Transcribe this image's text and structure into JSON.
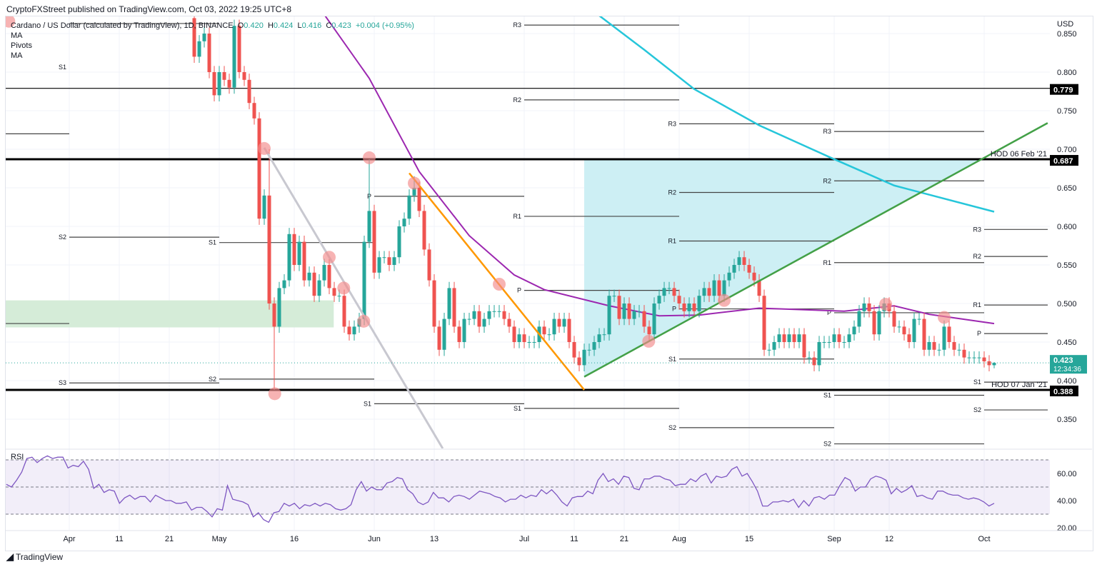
{
  "header": {
    "publisher_line": "CryptoFXStreet published on TradingView.com, Oct 03, 2022 19:25 UTC+8"
  },
  "legend": {
    "symbol": "Cardano / US Dollar (calculated by TradingView), 1D, BINANCE",
    "o_label": "O",
    "o": "0.420",
    "h_label": "H",
    "h": "0.424",
    "l_label": "L",
    "l": "0.416",
    "c_label": "C",
    "c": "0.423",
    "change": "+0.004 (+0.95%)",
    "indicators": [
      "MA",
      "Pivots",
      "MA"
    ],
    "rsi_label": "RSI"
  },
  "footer": {
    "brand": "TradingView",
    "logo_text": "17"
  },
  "colors": {
    "up": "#26a69a",
    "down": "#ef5350",
    "ma50": "#9c27b0",
    "ma200": "#26c6da",
    "rsi": "#7e57c2",
    "trend_green": "#43a047",
    "trend_orange": "#ff9800",
    "trend_grey": "#c8c8d0",
    "zone_green": "#d5ecd8",
    "zone_cyan": "#cdeff4",
    "marker": "#f28b8b"
  },
  "chart_data": {
    "type": "candlestick",
    "title": "Cardano / US Dollar, 1D, BINANCE",
    "ylabel": "USD",
    "ylim": [
      0.318,
      0.88
    ],
    "yticks": [
      "0.850",
      "0.800",
      "0.750",
      "0.700",
      "0.650",
      "0.600",
      "0.550",
      "0.500",
      "0.450",
      "0.400",
      "0.350"
    ],
    "x_unit": "days since Apr 1 2022",
    "xticks": [
      {
        "label": "Apr",
        "day": 0
      },
      {
        "label": "11",
        "day": 10
      },
      {
        "label": "21",
        "day": 20
      },
      {
        "label": "May",
        "day": 30
      },
      {
        "label": "16",
        "day": 45
      },
      {
        "label": "Jun",
        "day": 61
      },
      {
        "label": "13",
        "day": 73
      },
      {
        "label": "Jul",
        "day": 91
      },
      {
        "label": "11",
        "day": 101
      },
      {
        "label": "21",
        "day": 111
      },
      {
        "label": "Aug",
        "day": 122
      },
      {
        "label": "15",
        "day": 136
      },
      {
        "label": "Sep",
        "day": 153
      },
      {
        "label": "12",
        "day": 164
      },
      {
        "label": "Oct",
        "day": 183
      }
    ],
    "candles": {
      "start_day": 25,
      "first_open": 0.87,
      "closes": [
        0.82,
        0.84,
        0.85,
        0.8,
        0.77,
        0.8,
        0.79,
        0.78,
        0.86,
        0.8,
        0.79,
        0.76,
        0.74,
        0.61,
        0.64,
        0.5,
        0.47,
        0.52,
        0.53,
        0.59,
        0.55,
        0.58,
        0.53,
        0.54,
        0.51,
        0.53,
        0.55,
        0.52,
        0.51,
        0.51,
        0.47,
        0.46,
        0.47,
        0.48,
        0.58,
        0.62,
        0.54,
        0.56,
        0.56,
        0.55,
        0.56,
        0.6,
        0.61,
        0.64,
        0.65,
        0.62,
        0.57,
        0.53,
        0.47,
        0.44,
        0.48,
        0.52,
        0.47,
        0.45,
        0.48,
        0.48,
        0.49,
        0.47,
        0.48,
        0.49,
        0.49,
        0.49,
        0.48,
        0.47,
        0.45,
        0.46,
        0.45,
        0.45,
        0.45,
        0.47,
        0.46,
        0.46,
        0.48,
        0.47,
        0.48,
        0.45,
        0.43,
        0.42,
        0.44,
        0.44,
        0.45,
        0.46,
        0.46,
        0.51,
        0.51,
        0.48,
        0.5,
        0.48,
        0.49,
        0.49,
        0.47,
        0.46,
        0.5,
        0.51,
        0.52,
        0.52,
        0.51,
        0.5,
        0.49,
        0.5,
        0.49,
        0.51,
        0.52,
        0.51,
        0.53,
        0.51,
        0.53,
        0.54,
        0.55,
        0.56,
        0.55,
        0.54,
        0.53,
        0.51,
        0.44,
        0.44,
        0.45,
        0.46,
        0.45,
        0.46,
        0.45,
        0.46,
        0.43,
        0.43,
        0.42,
        0.45,
        0.45,
        0.45,
        0.46,
        0.45,
        0.45,
        0.46,
        0.47,
        0.49,
        0.5,
        0.49,
        0.46,
        0.49,
        0.5,
        0.49,
        0.47,
        0.47,
        0.46,
        0.45,
        0.48,
        0.48,
        0.44,
        0.45,
        0.44,
        0.44,
        0.47,
        0.45,
        0.44,
        0.44,
        0.43,
        0.43,
        0.43,
        0.43,
        0.425,
        0.42,
        0.423
      ],
      "high_overrides": {
        "40": 0.7,
        "60": 0.687,
        "69": 0.665,
        "185": 0.424
      },
      "low_overrides": {
        "41": 0.388,
        "185": 0.416
      }
    },
    "ma50": [
      [
        49,
        0.893
      ],
      [
        60,
        0.792
      ],
      [
        70,
        0.671
      ],
      [
        80,
        0.588
      ],
      [
        89,
        0.537
      ],
      [
        95,
        0.518
      ],
      [
        108,
        0.497
      ],
      [
        118,
        0.484
      ],
      [
        126,
        0.485
      ],
      [
        138,
        0.494
      ],
      [
        155,
        0.49
      ],
      [
        165,
        0.497
      ],
      [
        172,
        0.486
      ],
      [
        185,
        0.474
      ]
    ],
    "ma200": [
      [
        102,
        0.893
      ],
      [
        115,
        0.829
      ],
      [
        125,
        0.778
      ],
      [
        138,
        0.731
      ],
      [
        152,
        0.69
      ],
      [
        165,
        0.653
      ],
      [
        185,
        0.619
      ]
    ],
    "horizontal_levels": [
      {
        "price": 0.779,
        "label": "0.779",
        "note": "",
        "weight": "thin"
      },
      {
        "price": 0.687,
        "label": "0.687",
        "note": "HOD 06 Feb '21",
        "weight": "thick"
      },
      {
        "price": 0.388,
        "label": "0.388",
        "note": "HOD 07 Jan '21",
        "weight": "thick"
      }
    ],
    "last_price": {
      "price": 0.423,
      "label": "0.423",
      "countdown": "12:34:36"
    },
    "pivots": [
      {
        "from": -13,
        "to": 0,
        "levels": [
          {
            "label": "",
            "price": 0.72
          },
          {
            "label": "",
            "price": 0.474
          }
        ]
      },
      {
        "from": 0,
        "to": 30,
        "levels": [
          {
            "label": "S1",
            "price": 0.863
          },
          {
            "label": "S2",
            "price": 0.586
          },
          {
            "label": "S3",
            "price": 0.397
          }
        ]
      },
      {
        "from": 30,
        "to": 61,
        "levels": [
          {
            "label": "S1",
            "price": 0.579
          },
          {
            "label": "S2",
            "price": 0.402
          }
        ]
      },
      {
        "from": 61,
        "to": 91,
        "levels": [
          {
            "label": "P",
            "price": 0.639
          },
          {
            "label": "S1",
            "price": 0.37
          }
        ]
      },
      {
        "from": 91,
        "to": 122,
        "levels": [
          {
            "label": "R3",
            "price": 0.861
          },
          {
            "label": "R2",
            "price": 0.764
          },
          {
            "label": "R1",
            "price": 0.613
          },
          {
            "label": "P",
            "price": 0.517
          },
          {
            "label": "S1",
            "price": 0.364
          }
        ]
      },
      {
        "from": 122,
        "to": 153,
        "levels": [
          {
            "label": "R3",
            "price": 0.733
          },
          {
            "label": "R2",
            "price": 0.644
          },
          {
            "label": "R1",
            "price": 0.581
          },
          {
            "label": "P",
            "price": 0.493
          },
          {
            "label": "S1",
            "price": 0.428
          },
          {
            "label": "S2",
            "price": 0.339
          }
        ]
      },
      {
        "from": 153,
        "to": 183,
        "levels": [
          {
            "label": "R3",
            "price": 0.723
          },
          {
            "label": "R2",
            "price": 0.659
          },
          {
            "label": "R1",
            "price": 0.553
          },
          {
            "label": "P",
            "price": 0.488
          },
          {
            "label": "S1",
            "price": 0.381
          },
          {
            "label": "S2",
            "price": 0.318
          }
        ]
      },
      {
        "from": 183,
        "to": 196,
        "levels": [
          {
            "label": "R3",
            "price": 0.596
          },
          {
            "label": "R2",
            "price": 0.561
          },
          {
            "label": "R1",
            "price": 0.498
          },
          {
            "label": "P",
            "price": 0.461
          },
          {
            "label": "S1",
            "price": 0.398
          },
          {
            "label": "S2",
            "price": 0.362
          }
        ]
      }
    ],
    "trendlines": [
      {
        "name": "grey-trendline",
        "color": "trend_grey",
        "from": [
          39,
          0.702
        ],
        "to": [
          74.7,
          0.312
        ]
      },
      {
        "name": "orange-trendline",
        "color": "trend_orange",
        "from": [
          68,
          0.669
        ],
        "to": [
          103,
          0.388
        ]
      },
      {
        "name": "green-trendline",
        "color": "trend_green",
        "from": [
          103,
          0.405
        ],
        "to": [
          195.7,
          0.734
        ]
      }
    ],
    "zones": [
      {
        "name": "green-demand-zone",
        "color": "zone_green",
        "polygon": [
          [
            -13,
            0.504
          ],
          [
            52.9,
            0.504
          ],
          [
            52.9,
            0.469
          ],
          [
            -13,
            0.469
          ]
        ]
      },
      {
        "name": "cyan-triangle-zone",
        "color": "zone_cyan",
        "polygon": [
          [
            103,
            0.687
          ],
          [
            182.4,
            0.687
          ],
          [
            103,
            0.405
          ]
        ]
      }
    ],
    "markers": [
      [
        -12.1,
        0.866
      ],
      [
        39,
        0.701
      ],
      [
        41.1,
        0.383
      ],
      [
        52,
        0.56
      ],
      [
        54.9,
        0.52
      ],
      [
        58.9,
        0.477
      ],
      [
        60,
        0.689
      ],
      [
        69,
        0.656
      ],
      [
        86,
        0.525
      ],
      [
        115.9,
        0.451
      ],
      [
        131,
        0.504
      ],
      [
        163.3,
        0.499
      ],
      [
        175,
        0.482
      ]
    ],
    "rsi": {
      "start_day": -12.6,
      "end_day": 185,
      "levels": [
        70,
        50,
        30
      ],
      "ticks": [
        "60.00",
        "40.00",
        "20.00"
      ],
      "values": [
        52,
        50,
        55,
        61,
        71,
        72,
        68,
        71,
        73,
        71,
        72,
        72,
        64,
        66,
        65,
        69,
        63,
        49,
        52,
        46,
        48,
        47,
        38,
        42,
        44,
        41,
        43,
        43,
        39,
        44,
        42,
        40,
        40,
        38,
        38,
        39,
        33,
        35,
        35,
        32,
        28,
        34,
        33,
        51,
        41,
        40,
        39,
        37,
        28,
        31,
        26,
        24,
        31,
        32,
        38,
        36,
        38,
        34,
        37,
        36,
        38,
        36,
        38,
        37,
        34,
        33,
        34,
        37,
        48,
        54,
        47,
        50,
        48,
        48,
        53,
        54,
        57,
        56,
        48,
        45,
        39,
        37,
        39,
        46,
        42,
        42,
        39,
        43,
        44,
        43,
        41,
        44,
        47,
        46,
        45,
        43,
        42,
        39,
        41,
        41,
        44,
        42,
        44,
        43,
        48,
        45,
        48,
        44,
        39,
        36,
        42,
        43,
        43,
        47,
        45,
        55,
        60,
        54,
        56,
        52,
        58,
        57,
        49,
        48,
        56,
        56,
        58,
        58,
        56,
        55,
        51,
        52,
        52,
        56,
        54,
        58,
        60,
        53,
        58,
        57,
        58,
        63,
        65,
        58,
        60,
        54,
        47,
        36,
        36,
        39,
        39,
        40,
        39,
        41,
        35,
        40,
        36,
        42,
        43,
        41,
        44,
        44,
        51,
        57,
        55,
        47,
        50,
        50,
        56,
        58,
        57,
        55,
        45,
        49,
        46,
        48,
        51,
        43,
        44,
        42,
        41,
        47,
        47,
        45,
        44,
        44,
        42,
        41,
        42,
        41,
        39,
        36,
        38
      ]
    }
  }
}
